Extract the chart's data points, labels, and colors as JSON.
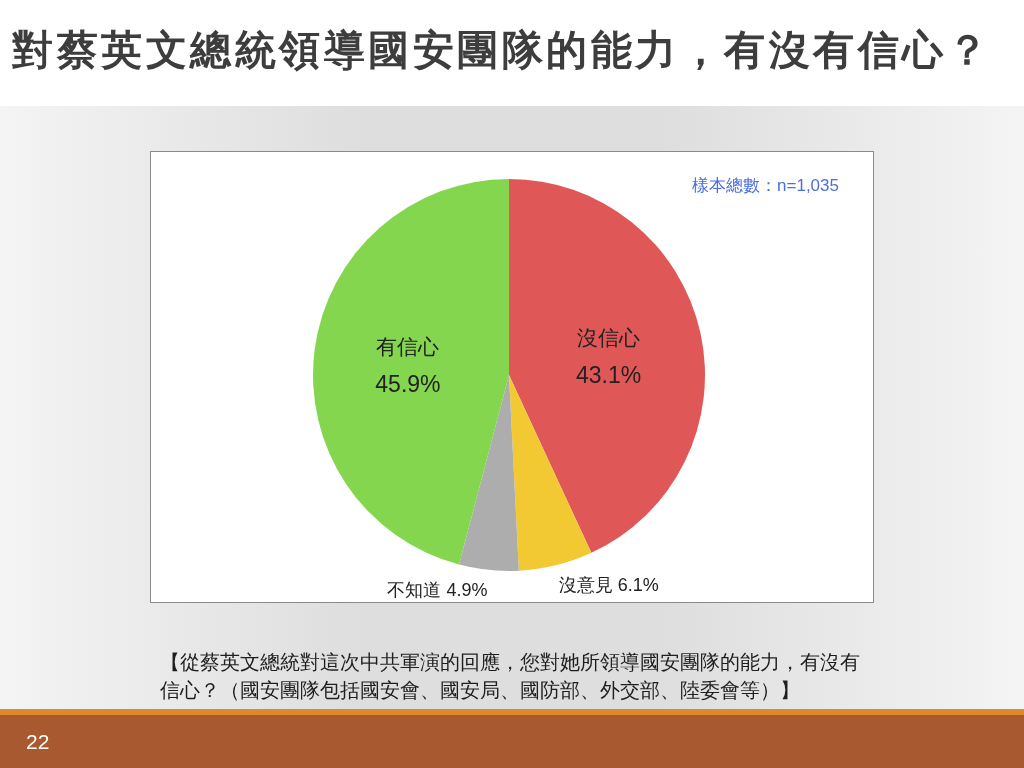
{
  "chart_data": {
    "type": "pie",
    "title": "對蔡英文總統領導國安團隊的能力，有沒有信心？",
    "categories": [
      "沒信心",
      "沒意見",
      "不知道",
      "有信心"
    ],
    "values": [
      43.1,
      6.1,
      4.9,
      45.9
    ],
    "colors": [
      "#e05757",
      "#f2c933",
      "#adadad",
      "#84d64f"
    ],
    "value_labels": [
      "43.1%",
      "6.1%",
      "4.9%",
      "45.9%"
    ],
    "annotations": [
      "樣本總數：n=1,035",
      "【從蔡英文總統對這次中共軍演的回應，您對她所領導國安團隊的能力，有沒有信心？（國安團隊包括國安會、國安局、國防部、外交部、陸委會等）】",
      "22"
    ]
  }
}
